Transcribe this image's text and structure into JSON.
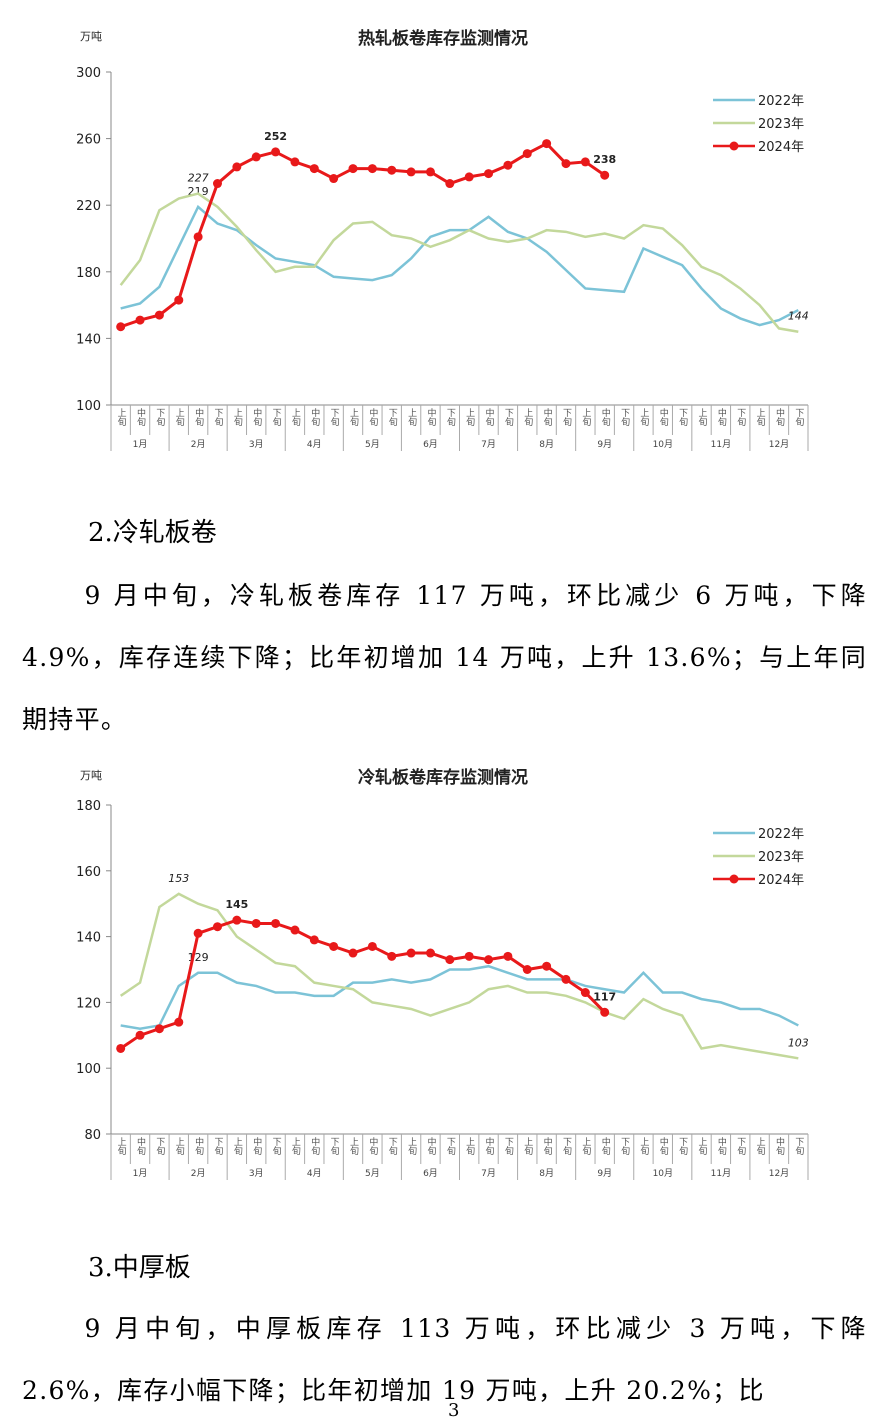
{
  "chart_data": [
    {
      "type": "line",
      "title": "热轧板卷库存监测情况",
      "y_unit": "万吨",
      "ylim": [
        100,
        300
      ],
      "yticks": [
        100,
        140,
        180,
        220,
        260,
        300
      ],
      "legend": "upper right",
      "categories": [
        "上旬",
        "中旬",
        "下旬",
        "上旬",
        "中旬",
        "下旬",
        "上旬",
        "中旬",
        "下旬",
        "上旬",
        "中旬",
        "下旬",
        "上旬",
        "中旬",
        "下旬",
        "上旬",
        "中旬",
        "下旬",
        "上旬",
        "中旬",
        "下旬",
        "上旬",
        "中旬",
        "下旬",
        "上旬",
        "中旬",
        "下旬",
        "上旬",
        "中旬",
        "下旬",
        "上旬",
        "中旬",
        "下旬",
        "上旬",
        "中旬",
        "下旬"
      ],
      "groups": [
        "1月",
        "2月",
        "3月",
        "4月",
        "5月",
        "6月",
        "7月",
        "8月",
        "9月",
        "10月",
        "11月",
        "12月"
      ],
      "series": [
        {
          "name": "2022年",
          "color": "#7cc3d7",
          "values": [
            158,
            161,
            171,
            195,
            219,
            209,
            205,
            196,
            188,
            186,
            184,
            177,
            176,
            175,
            178,
            188,
            201,
            205,
            205,
            213,
            204,
            200,
            192,
            181,
            170,
            169,
            168,
            194,
            189,
            184,
            170,
            158,
            152,
            148,
            151,
            157
          ],
          "value_labels": {
            "4": "219"
          }
        },
        {
          "name": "2023年",
          "color": "#c3d89b",
          "values": [
            172,
            187,
            217,
            224,
            227,
            219,
            207,
            193,
            180,
            183,
            183,
            199,
            209,
            210,
            202,
            200,
            195,
            199,
            205,
            200,
            198,
            200,
            205,
            204,
            201,
            203,
            200,
            208,
            206,
            196,
            183,
            178,
            170,
            160,
            146,
            144
          ],
          "value_labels": {
            "4": "227",
            "35": "144"
          }
        },
        {
          "name": "2024年",
          "color": "#e8191a",
          "markers": true,
          "values": [
            147,
            151,
            154,
            163,
            201,
            233,
            243,
            249,
            252,
            246,
            242,
            236,
            242,
            242,
            241,
            240,
            240,
            233,
            237,
            239,
            244,
            251,
            257,
            245,
            246,
            238,
            null,
            null,
            null,
            null,
            null,
            null,
            null,
            null,
            null,
            null
          ],
          "value_labels": {
            "8": "252",
            "25": "238"
          }
        }
      ]
    },
    {
      "type": "line",
      "title": "冷轧板卷库存监测情况",
      "y_unit": "万吨",
      "ylim": [
        80,
        180
      ],
      "yticks": [
        80,
        100,
        120,
        140,
        160,
        180
      ],
      "legend": "upper right",
      "categories": [
        "上旬",
        "中旬",
        "下旬",
        "上旬",
        "中旬",
        "下旬",
        "上旬",
        "中旬",
        "下旬",
        "上旬",
        "中旬",
        "下旬",
        "上旬",
        "中旬",
        "下旬",
        "上旬",
        "中旬",
        "下旬",
        "上旬",
        "中旬",
        "下旬",
        "上旬",
        "中旬",
        "下旬",
        "上旬",
        "中旬",
        "下旬",
        "上旬",
        "中旬",
        "下旬",
        "上旬",
        "中旬",
        "下旬",
        "上旬",
        "中旬",
        "下旬"
      ],
      "groups": [
        "1月",
        "2月",
        "3月",
        "4月",
        "5月",
        "6月",
        "7月",
        "8月",
        "9月",
        "10月",
        "11月",
        "12月"
      ],
      "series": [
        {
          "name": "2022年",
          "color": "#7cc3d7",
          "values": [
            113,
            112,
            113,
            125,
            129,
            129,
            126,
            125,
            123,
            123,
            122,
            122,
            126,
            126,
            127,
            126,
            127,
            130,
            130,
            131,
            129,
            127,
            127,
            127,
            125,
            124,
            123,
            129,
            123,
            123,
            121,
            120,
            118,
            118,
            116,
            113
          ],
          "value_labels": {
            "4": "129"
          }
        },
        {
          "name": "2023年",
          "color": "#c3d89b",
          "values": [
            122,
            126,
            149,
            153,
            150,
            148,
            140,
            136,
            132,
            131,
            126,
            125,
            124,
            120,
            119,
            118,
            116,
            118,
            120,
            124,
            125,
            123,
            123,
            122,
            120,
            117,
            115,
            121,
            118,
            116,
            106,
            107,
            106,
            105,
            104,
            103
          ],
          "value_labels": {
            "3": "153",
            "35": "103"
          }
        },
        {
          "name": "2024年",
          "color": "#e8191a",
          "markers": true,
          "values": [
            106,
            110,
            112,
            114,
            141,
            143,
            145,
            144,
            144,
            142,
            139,
            137,
            135,
            137,
            134,
            135,
            135,
            133,
            134,
            133,
            134,
            130,
            131,
            127,
            123,
            117,
            null,
            null,
            null,
            null,
            null,
            null,
            null,
            null,
            null,
            null
          ],
          "value_labels": {
            "6": "145",
            "25": "117"
          }
        }
      ]
    }
  ],
  "sections": [
    {
      "heading": "2.冷轧板卷",
      "paragraph": "9 月中旬，冷轧板卷库存 117 万吨，环比减少 6 万吨，下降 4.9%，库存连续下降；比年初增加 14 万吨，上升 13.6%；与上年同期持平。"
    },
    {
      "heading": "3.中厚板",
      "paragraph": "9 月中旬，中厚板库存 113 万吨，环比减少 3 万吨，下降 2.6%，库存小幅下降；比年初增加 19 万吨，上升 20.2%；比"
    }
  ],
  "page_number": "3"
}
